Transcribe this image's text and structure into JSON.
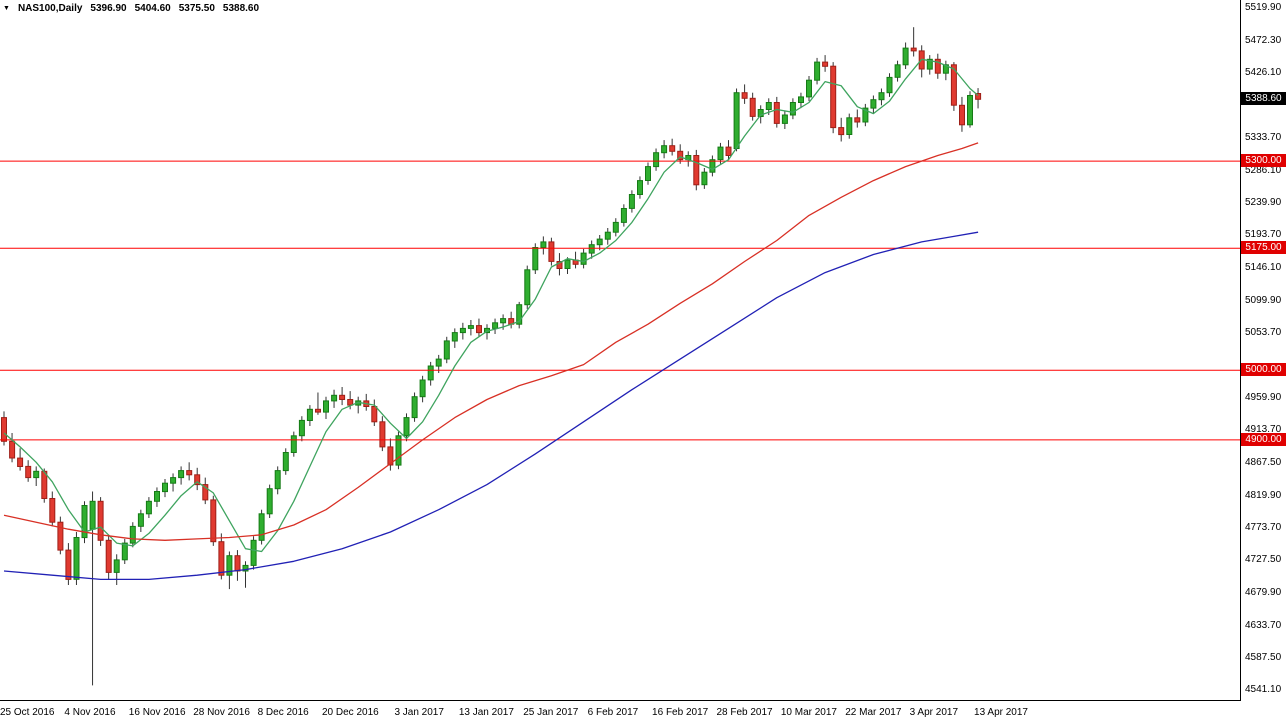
{
  "legend": {
    "marker": "▼",
    "symbol": "NAS100,Daily",
    "open": "5396.90",
    "high": "5404.60",
    "low": "5375.50",
    "close": "5388.60"
  },
  "colors": {
    "background": "#ffffff",
    "axis_text": "#000000",
    "border": "#000000",
    "bull": "#2fae2f",
    "bull_border": "#157a15",
    "bear": "#e03a30",
    "bear_border": "#9e1f17",
    "wick": "#333333",
    "level_line": "#ff0000",
    "level_tag_bg": "#e00000",
    "current_tag_bg": "#000000",
    "tag_text": "#ffffff",
    "ma_fast": "#3fa45f",
    "ma_mid": "#d83025",
    "ma_slow": "#2121b5"
  },
  "chart_data": {
    "type": "candlestick",
    "symbol": "NAS100",
    "timeframe": "Daily",
    "title": "NAS100,Daily",
    "ylim": [
      4527,
      5531
    ],
    "y_axis_labels": [
      "5519.90",
      "5472.30",
      "5426.10",
      "5333.70",
      "5286.10",
      "5239.90",
      "5193.70",
      "5146.10",
      "5099.90",
      "5053.70",
      "4959.90",
      "4913.70",
      "4867.50",
      "4819.90",
      "4773.70",
      "4727.50",
      "4679.90",
      "4633.70",
      "4587.50",
      "4541.10"
    ],
    "x_ticks": [
      {
        "i": 0,
        "label": "25 Oct 2016"
      },
      {
        "i": 8,
        "label": "4 Nov 2016"
      },
      {
        "i": 16,
        "label": "16 Nov 2016"
      },
      {
        "i": 24,
        "label": "28 Nov 2016"
      },
      {
        "i": 32,
        "label": "8 Dec 2016"
      },
      {
        "i": 40,
        "label": "20 Dec 2016"
      },
      {
        "i": 49,
        "label": "3 Jan 2017"
      },
      {
        "i": 57,
        "label": "13 Jan 2017"
      },
      {
        "i": 65,
        "label": "25 Jan 2017"
      },
      {
        "i": 73,
        "label": "6 Feb 2017"
      },
      {
        "i": 81,
        "label": "16 Feb 2017"
      },
      {
        "i": 89,
        "label": "28 Feb 2017"
      },
      {
        "i": 97,
        "label": "10 Mar 2017"
      },
      {
        "i": 105,
        "label": "22 Mar 2017"
      },
      {
        "i": 113,
        "label": "3 Apr 2017"
      },
      {
        "i": 121,
        "label": "13 Apr 2017"
      }
    ],
    "levels": [
      {
        "value": 5300.0,
        "label": "5300.00"
      },
      {
        "value": 5175.0,
        "label": "5175.00"
      },
      {
        "value": 5000.0,
        "label": "5000.00"
      },
      {
        "value": 4900.0,
        "label": "4900.00"
      }
    ],
    "current_price": {
      "value": 5388.6,
      "label": "5388.60"
    },
    "ohlc_current": {
      "open": 5396.9,
      "high": 5404.6,
      "low": 5375.5,
      "close": 5388.6
    },
    "candles": [
      [
        4932,
        4941,
        4892,
        4898
      ],
      [
        4898,
        4910,
        4868,
        4874
      ],
      [
        4874,
        4888,
        4856,
        4862
      ],
      [
        4862,
        4871,
        4840,
        4846
      ],
      [
        4846,
        4862,
        4834,
        4855
      ],
      [
        4855,
        4859,
        4810,
        4816
      ],
      [
        4816,
        4826,
        4776,
        4782
      ],
      [
        4782,
        4790,
        4736,
        4742
      ],
      [
        4742,
        4752,
        4692,
        4700
      ],
      [
        4700,
        4768,
        4692,
        4760
      ],
      [
        4760,
        4812,
        4752,
        4806
      ],
      [
        4772,
        4826,
        4548,
        4812
      ],
      [
        4812,
        4818,
        4748,
        4756
      ],
      [
        4756,
        4764,
        4700,
        4710
      ],
      [
        4710,
        4736,
        4692,
        4728
      ],
      [
        4728,
        4758,
        4722,
        4752
      ],
      [
        4752,
        4782,
        4746,
        4776
      ],
      [
        4776,
        4800,
        4768,
        4794
      ],
      [
        4794,
        4818,
        4788,
        4812
      ],
      [
        4812,
        4832,
        4804,
        4826
      ],
      [
        4826,
        4844,
        4818,
        4838
      ],
      [
        4838,
        4852,
        4826,
        4846
      ],
      [
        4846,
        4862,
        4836,
        4856
      ],
      [
        4856,
        4868,
        4842,
        4850
      ],
      [
        4850,
        4860,
        4828,
        4836
      ],
      [
        4836,
        4846,
        4808,
        4814
      ],
      [
        4814,
        4820,
        4748,
        4754
      ],
      [
        4754,
        4766,
        4700,
        4706
      ],
      [
        4706,
        4740,
        4686,
        4734
      ],
      [
        4734,
        4742,
        4698,
        4712
      ],
      [
        4712,
        4726,
        4688,
        4720
      ],
      [
        4720,
        4762,
        4714,
        4756
      ],
      [
        4756,
        4800,
        4750,
        4794
      ],
      [
        4794,
        4836,
        4788,
        4830
      ],
      [
        4830,
        4862,
        4822,
        4856
      ],
      [
        4856,
        4888,
        4850,
        4882
      ],
      [
        4882,
        4912,
        4876,
        4906
      ],
      [
        4906,
        4934,
        4898,
        4928
      ],
      [
        4928,
        4950,
        4920,
        4944
      ],
      [
        4944,
        4968,
        4936,
        4940
      ],
      [
        4940,
        4962,
        4930,
        4956
      ],
      [
        4956,
        4972,
        4946,
        4964
      ],
      [
        4964,
        4976,
        4950,
        4958
      ],
      [
        4958,
        4970,
        4944,
        4950
      ],
      [
        4950,
        4962,
        4938,
        4956
      ],
      [
        4956,
        4966,
        4942,
        4948
      ],
      [
        4948,
        4958,
        4920,
        4926
      ],
      [
        4926,
        4934,
        4884,
        4890
      ],
      [
        4890,
        4902,
        4856,
        4864
      ],
      [
        4864,
        4912,
        4858,
        4906
      ],
      [
        4906,
        4938,
        4898,
        4932
      ],
      [
        4932,
        4968,
        4926,
        4962
      ],
      [
        4962,
        4992,
        4954,
        4986
      ],
      [
        4986,
        5012,
        4978,
        5006
      ],
      [
        5006,
        5022,
        4996,
        5016
      ],
      [
        5016,
        5048,
        5010,
        5042
      ],
      [
        5042,
        5060,
        5032,
        5054
      ],
      [
        5054,
        5068,
        5044,
        5060
      ],
      [
        5060,
        5072,
        5050,
        5064
      ],
      [
        5064,
        5074,
        5048,
        5054
      ],
      [
        5054,
        5066,
        5044,
        5060
      ],
      [
        5060,
        5074,
        5052,
        5068
      ],
      [
        5068,
        5080,
        5058,
        5074
      ],
      [
        5074,
        5084,
        5060,
        5066
      ],
      [
        5066,
        5098,
        5060,
        5094
      ],
      [
        5094,
        5150,
        5088,
        5144
      ],
      [
        5144,
        5182,
        5138,
        5176
      ],
      [
        5176,
        5192,
        5166,
        5184
      ],
      [
        5184,
        5190,
        5150,
        5156
      ],
      [
        5156,
        5168,
        5136,
        5146
      ],
      [
        5146,
        5162,
        5138,
        5158
      ],
      [
        5158,
        5170,
        5146,
        5152
      ],
      [
        5152,
        5174,
        5146,
        5168
      ],
      [
        5168,
        5186,
        5160,
        5180
      ],
      [
        5180,
        5194,
        5172,
        5188
      ],
      [
        5188,
        5204,
        5180,
        5198
      ],
      [
        5198,
        5218,
        5192,
        5212
      ],
      [
        5212,
        5238,
        5206,
        5232
      ],
      [
        5232,
        5258,
        5226,
        5252
      ],
      [
        5252,
        5278,
        5246,
        5272
      ],
      [
        5272,
        5298,
        5266,
        5292
      ],
      [
        5292,
        5318,
        5286,
        5312
      ],
      [
        5312,
        5330,
        5304,
        5322
      ],
      [
        5322,
        5332,
        5308,
        5314
      ],
      [
        5314,
        5324,
        5296,
        5302
      ],
      [
        5302,
        5314,
        5292,
        5308
      ],
      [
        5308,
        5316,
        5258,
        5266
      ],
      [
        5266,
        5290,
        5260,
        5284
      ],
      [
        5284,
        5308,
        5278,
        5302
      ],
      [
        5302,
        5326,
        5296,
        5320
      ],
      [
        5320,
        5330,
        5302,
        5308
      ],
      [
        5318,
        5404,
        5314,
        5398
      ],
      [
        5398,
        5410,
        5382,
        5390
      ],
      [
        5390,
        5398,
        5358,
        5364
      ],
      [
        5364,
        5380,
        5354,
        5374
      ],
      [
        5374,
        5390,
        5366,
        5384
      ],
      [
        5384,
        5392,
        5348,
        5354
      ],
      [
        5354,
        5372,
        5346,
        5366
      ],
      [
        5366,
        5390,
        5360,
        5384
      ],
      [
        5384,
        5398,
        5376,
        5392
      ],
      [
        5392,
        5422,
        5386,
        5416
      ],
      [
        5416,
        5448,
        5410,
        5442
      ],
      [
        5442,
        5452,
        5428,
        5436
      ],
      [
        5436,
        5442,
        5340,
        5348
      ],
      [
        5348,
        5362,
        5328,
        5338
      ],
      [
        5338,
        5368,
        5332,
        5362
      ],
      [
        5362,
        5374,
        5348,
        5356
      ],
      [
        5356,
        5382,
        5350,
        5376
      ],
      [
        5376,
        5394,
        5368,
        5388
      ],
      [
        5388,
        5404,
        5380,
        5398
      ],
      [
        5398,
        5426,
        5392,
        5420
      ],
      [
        5420,
        5444,
        5414,
        5438
      ],
      [
        5438,
        5470,
        5432,
        5462
      ],
      [
        5462,
        5492,
        5450,
        5458
      ],
      [
        5458,
        5466,
        5420,
        5432
      ],
      [
        5432,
        5452,
        5424,
        5446
      ],
      [
        5446,
        5454,
        5418,
        5426
      ],
      [
        5426,
        5444,
        5416,
        5438
      ],
      [
        5438,
        5442,
        5372,
        5380
      ],
      [
        5380,
        5392,
        5342,
        5352
      ],
      [
        5352,
        5400,
        5348,
        5394
      ],
      [
        5396.9,
        5404.6,
        5375.5,
        5388.6
      ]
    ],
    "ma_lines": [
      {
        "name": "fast",
        "color_key": "ma_fast",
        "points": [
          [
            0,
            4910
          ],
          [
            2,
            4890
          ],
          [
            4,
            4868
          ],
          [
            6,
            4840
          ],
          [
            8,
            4800
          ],
          [
            10,
            4768
          ],
          [
            12,
            4775
          ],
          [
            14,
            4752
          ],
          [
            16,
            4748
          ],
          [
            18,
            4766
          ],
          [
            20,
            4792
          ],
          [
            22,
            4820
          ],
          [
            24,
            4840
          ],
          [
            26,
            4824
          ],
          [
            28,
            4784
          ],
          [
            30,
            4744
          ],
          [
            32,
            4740
          ],
          [
            34,
            4770
          ],
          [
            36,
            4812
          ],
          [
            38,
            4862
          ],
          [
            40,
            4912
          ],
          [
            42,
            4944
          ],
          [
            44,
            4954
          ],
          [
            46,
            4950
          ],
          [
            48,
            4924
          ],
          [
            50,
            4902
          ],
          [
            52,
            4926
          ],
          [
            54,
            4964
          ],
          [
            56,
            5006
          ],
          [
            58,
            5040
          ],
          [
            60,
            5056
          ],
          [
            62,
            5062
          ],
          [
            64,
            5070
          ],
          [
            66,
            5102
          ],
          [
            68,
            5148
          ],
          [
            70,
            5160
          ],
          [
            72,
            5156
          ],
          [
            74,
            5168
          ],
          [
            76,
            5186
          ],
          [
            78,
            5212
          ],
          [
            80,
            5246
          ],
          [
            82,
            5284
          ],
          [
            84,
            5306
          ],
          [
            86,
            5298
          ],
          [
            88,
            5288
          ],
          [
            90,
            5302
          ],
          [
            92,
            5336
          ],
          [
            94,
            5366
          ],
          [
            96,
            5374
          ],
          [
            98,
            5370
          ],
          [
            100,
            5384
          ],
          [
            102,
            5414
          ],
          [
            104,
            5408
          ],
          [
            106,
            5378
          ],
          [
            108,
            5368
          ],
          [
            110,
            5386
          ],
          [
            112,
            5418
          ],
          [
            114,
            5446
          ],
          [
            116,
            5442
          ],
          [
            118,
            5432
          ],
          [
            120,
            5404
          ],
          [
            121,
            5394
          ]
        ]
      },
      {
        "name": "mid",
        "color_key": "ma_mid",
        "points": [
          [
            0,
            4792
          ],
          [
            4,
            4782
          ],
          [
            8,
            4772
          ],
          [
            12,
            4764
          ],
          [
            16,
            4758
          ],
          [
            20,
            4756
          ],
          [
            24,
            4758
          ],
          [
            28,
            4760
          ],
          [
            32,
            4764
          ],
          [
            36,
            4778
          ],
          [
            40,
            4800
          ],
          [
            44,
            4832
          ],
          [
            48,
            4866
          ],
          [
            52,
            4900
          ],
          [
            56,
            4932
          ],
          [
            60,
            4958
          ],
          [
            64,
            4978
          ],
          [
            68,
            4992
          ],
          [
            72,
            5008
          ],
          [
            76,
            5040
          ],
          [
            80,
            5066
          ],
          [
            84,
            5096
          ],
          [
            88,
            5124
          ],
          [
            92,
            5156
          ],
          [
            96,
            5186
          ],
          [
            100,
            5222
          ],
          [
            104,
            5248
          ],
          [
            108,
            5272
          ],
          [
            112,
            5292
          ],
          [
            116,
            5308
          ],
          [
            119,
            5318
          ],
          [
            121,
            5326
          ]
        ]
      },
      {
        "name": "slow",
        "color_key": "ma_slow",
        "points": [
          [
            0,
            4712
          ],
          [
            6,
            4706
          ],
          [
            12,
            4700
          ],
          [
            18,
            4700
          ],
          [
            24,
            4706
          ],
          [
            30,
            4714
          ],
          [
            36,
            4726
          ],
          [
            42,
            4744
          ],
          [
            48,
            4768
          ],
          [
            54,
            4800
          ],
          [
            60,
            4836
          ],
          [
            66,
            4880
          ],
          [
            72,
            4926
          ],
          [
            78,
            4972
          ],
          [
            84,
            5016
          ],
          [
            90,
            5060
          ],
          [
            96,
            5104
          ],
          [
            102,
            5140
          ],
          [
            108,
            5166
          ],
          [
            114,
            5184
          ],
          [
            118,
            5192
          ],
          [
            121,
            5198
          ]
        ]
      }
    ]
  }
}
